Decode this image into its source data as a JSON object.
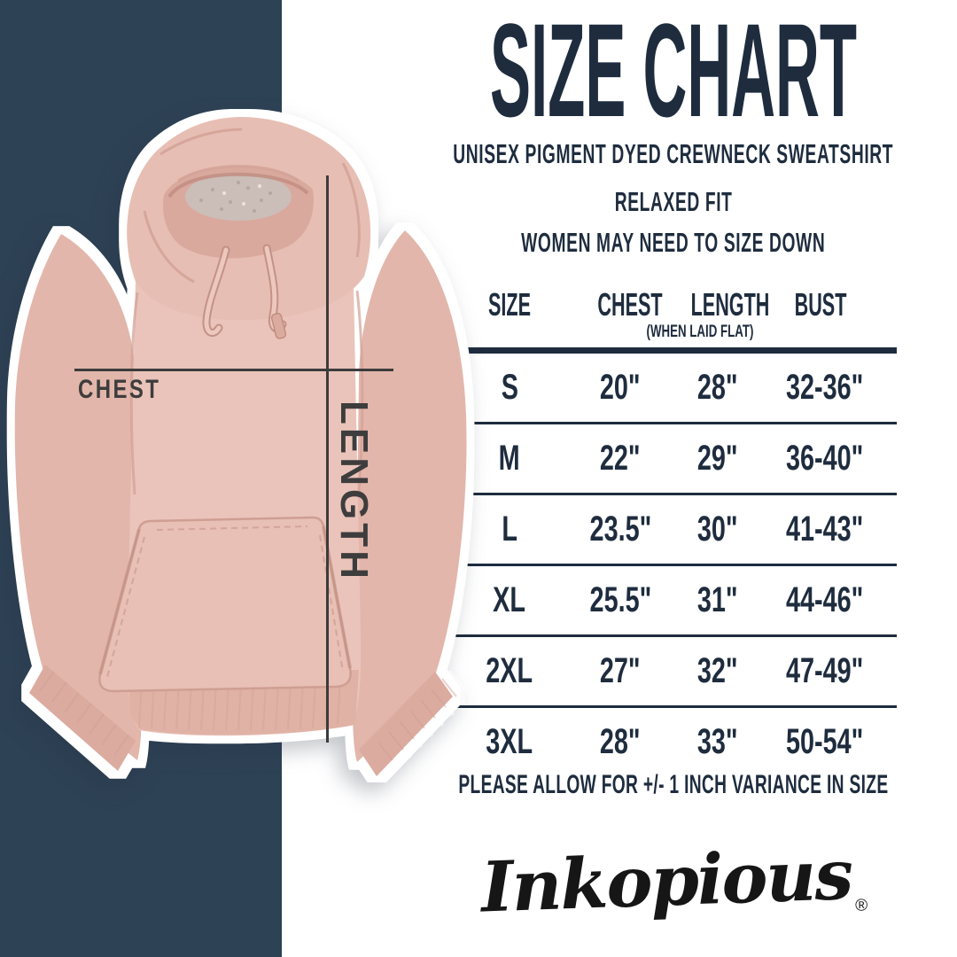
{
  "colors": {
    "accent_navy_band": "#2e4255",
    "text_navy": "#1e2c3e",
    "label_gray": "#3e3d3d",
    "hoodie_pink": "#e9c3b9",
    "background": "#ffffff"
  },
  "header": {
    "title": "SIZE CHART",
    "subtitle_1": "UNISEX PIGMENT DYED CREWNECK SWEATSHIRT",
    "subtitle_2": "RELAXED FIT",
    "subtitle_3": "WOMEN MAY NEED TO SIZE DOWN"
  },
  "diagram": {
    "chest_label": "CHEST",
    "length_label": "LENGTH"
  },
  "chart_data": {
    "type": "table",
    "title": "SIZE CHART",
    "columns": [
      "SIZE",
      "CHEST",
      "LENGTH",
      "BUST"
    ],
    "chest_column_note": "(WHEN LAID FLAT)",
    "rows": [
      [
        "S",
        "20\"",
        "28\"",
        "32-36\""
      ],
      [
        "M",
        "22\"",
        "29\"",
        "36-40\""
      ],
      [
        "L",
        "23.5\"",
        "30\"",
        "41-43\""
      ],
      [
        "XL",
        "25.5\"",
        "31\"",
        "44-46\""
      ],
      [
        "2XL",
        "27\"",
        "32\"",
        "47-49\""
      ],
      [
        "3XL",
        "28\"",
        "33\"",
        "50-54\""
      ]
    ]
  },
  "footnote": "PLEASE ALLOW FOR +/- 1 INCH VARIANCE IN SIZE",
  "brand": {
    "name": "Inkopious",
    "registered_mark": "®"
  }
}
